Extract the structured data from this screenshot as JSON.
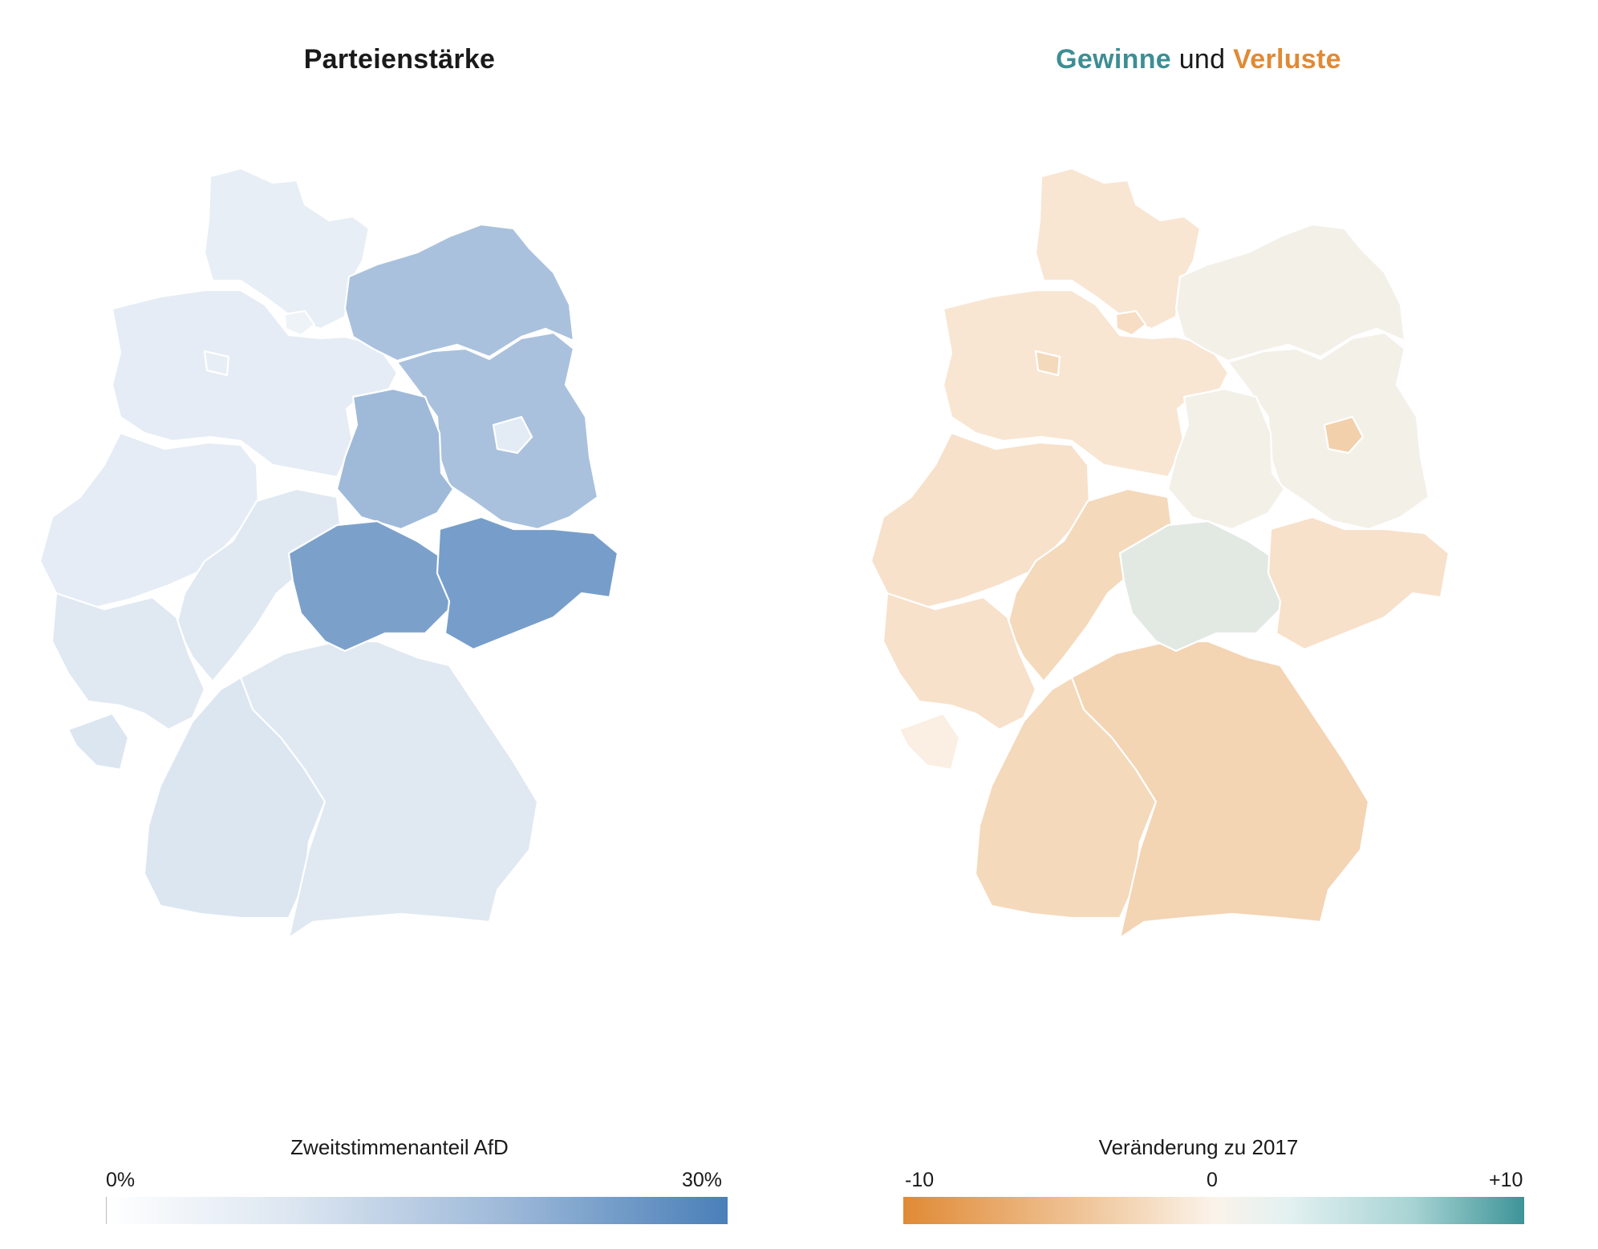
{
  "left_panel": {
    "title": "Parteienstärke",
    "legend": {
      "label": "Zweitstimmenanteil AfD",
      "min_label": "0%",
      "max_label": "30%",
      "colors": [
        "#ffffff",
        "#dce6f1",
        "#9cb8d8",
        "#4a7fb8"
      ]
    }
  },
  "right_panel": {
    "title": {
      "gains": "Gewinne",
      "connector": "und",
      "losses": "Verluste"
    },
    "title_colors": {
      "gains": "#3e8e94",
      "losses": "#e08a35"
    },
    "legend": {
      "label": "Veränderung zu 2017",
      "min_label": "-10",
      "mid_label": "0",
      "max_label": "+10",
      "colors": [
        "#e08a35",
        "#f0c79c",
        "#fbf3ea",
        "#a8d3d4",
        "#3d9497"
      ]
    }
  },
  "map_regions": [
    {
      "id": "schleswig-holstein",
      "share": 7,
      "change": -1.5
    },
    {
      "id": "hamburg",
      "share": 5,
      "change": -2.5
    },
    {
      "id": "niedersachsen",
      "share": 7.5,
      "change": -1.5
    },
    {
      "id": "bremen",
      "share": 7,
      "change": -3
    },
    {
      "id": "nordrhein-westfalen",
      "share": 7.5,
      "change": -2
    },
    {
      "id": "hessen",
      "share": 9,
      "change": -3
    },
    {
      "id": "rheinland-pfalz",
      "share": 9,
      "change": -2
    },
    {
      "id": "saarland",
      "share": 10,
      "change": -0.5
    },
    {
      "id": "baden-wuerttemberg",
      "share": 10,
      "change": -3
    },
    {
      "id": "bayern",
      "share": 9,
      "change": -3.5
    },
    {
      "id": "mecklenburg-vorpommern",
      "share": 18,
      "change": 0.5
    },
    {
      "id": "brandenburg",
      "share": 18,
      "change": 0.5
    },
    {
      "id": "berlin",
      "share": 8,
      "change": -4
    },
    {
      "id": "sachsen-anhalt",
      "share": 19.5,
      "change": 0.5
    },
    {
      "id": "thueringen",
      "share": 24,
      "change": 1.5
    },
    {
      "id": "sachsen",
      "share": 24.5,
      "change": -2
    }
  ]
}
